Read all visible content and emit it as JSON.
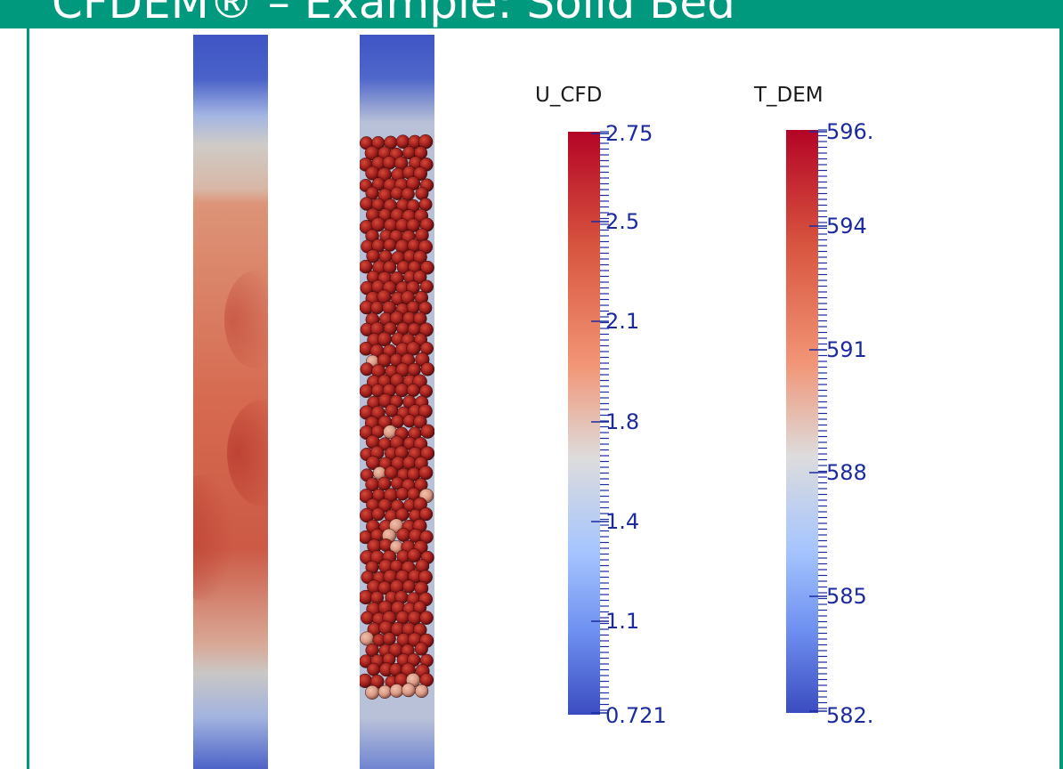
{
  "header": {
    "title": "CFDEM® – Example: Solid Bed"
  },
  "legends": {
    "u_cfd": {
      "title": "U_CFD",
      "labels": [
        "2.75",
        "2.5",
        "2.1",
        "1.8",
        "1.4",
        "1.1",
        "0.721"
      ]
    },
    "t_dem": {
      "title": "T_DEM",
      "labels": [
        "596.",
        "594",
        "591",
        "588",
        "585",
        "582."
      ]
    }
  },
  "colors": {
    "accent": "#00997d",
    "colormap_high": "#b40426",
    "colormap_mid": "#dddcdc",
    "colormap_low": "#3b4cc0",
    "tick_label": "#1c2aa0"
  }
}
